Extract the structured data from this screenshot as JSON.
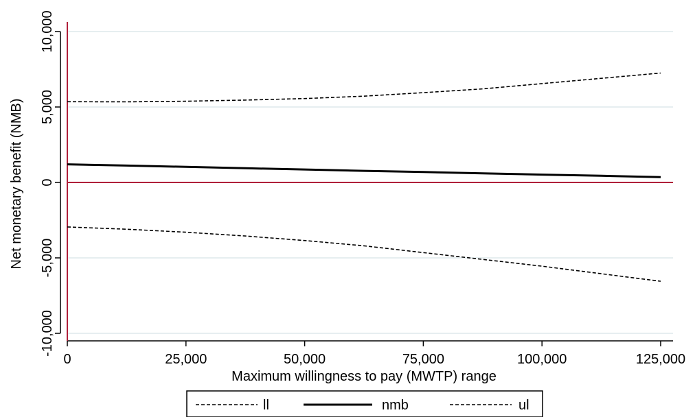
{
  "chart_data": {
    "type": "line",
    "xlabel": "Maximum willingness to pay (MWTP) range",
    "ylabel": "Net monetary benefit (NMB)",
    "xlim": [
      0,
      125000
    ],
    "ylim": [
      -10000,
      10000
    ],
    "xticks": [
      0,
      25000,
      50000,
      75000,
      100000,
      125000
    ],
    "xtick_labels": [
      "0",
      "25,000",
      "50,000",
      "75,000",
      "100,000",
      "125,000"
    ],
    "yticks": [
      -10000,
      -5000,
      0,
      5000,
      10000
    ],
    "ytick_labels": [
      "-10,000",
      "-5,000",
      "0",
      "5,000",
      "10,000"
    ],
    "grid": "horizontal",
    "reference_lines": {
      "x": 0,
      "y": 0,
      "color": "#b0203a"
    },
    "legend_position": "bottom",
    "x": [
      0,
      12500,
      25000,
      37500,
      50000,
      62500,
      75000,
      87500,
      100000,
      112500,
      125000
    ],
    "series": [
      {
        "name": "ll",
        "style": "dashed",
        "values": [
          5350,
          5340,
          5380,
          5460,
          5560,
          5720,
          5950,
          6200,
          6550,
          6900,
          7250
        ]
      },
      {
        "name": "nmb",
        "style": "solid",
        "values": [
          1200,
          1120,
          1030,
          940,
          860,
          770,
          690,
          600,
          520,
          440,
          350
        ]
      },
      {
        "name": "ul",
        "style": "dashed",
        "values": [
          -2950,
          -3100,
          -3300,
          -3550,
          -3850,
          -4200,
          -4650,
          -5100,
          -5550,
          -6050,
          -6550
        ]
      }
    ]
  },
  "colors": {
    "reference": "#b0203a",
    "grid": "#e6eef0",
    "line": "#000000"
  }
}
